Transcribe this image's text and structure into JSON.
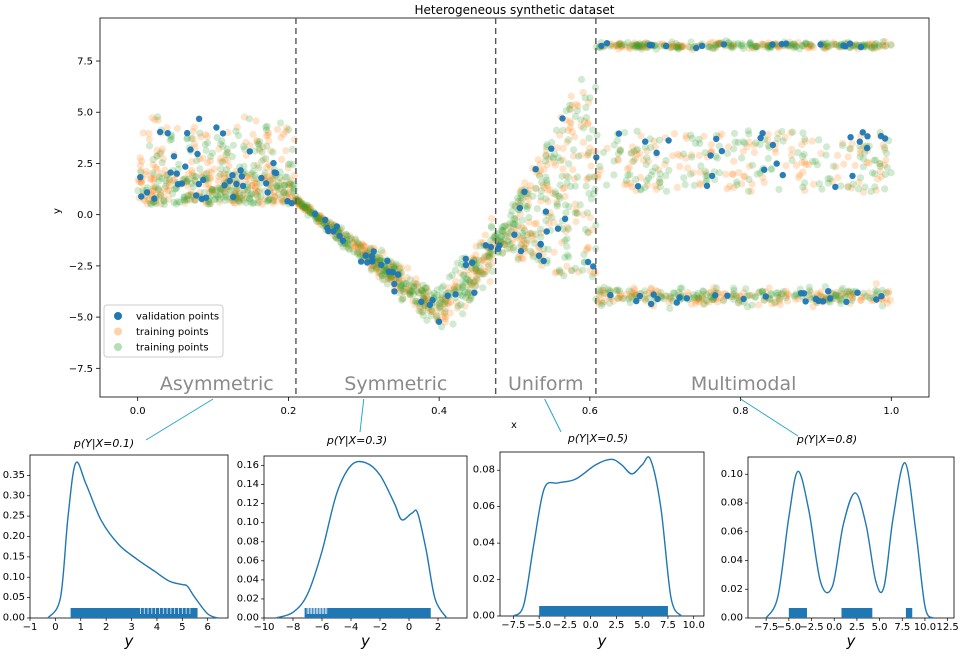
{
  "chart_data": [
    {
      "type": "scatter",
      "title": "Heterogeneous synthetic dataset",
      "xlabel": "x",
      "ylabel": "y",
      "xlim": [
        -0.05,
        1.05
      ],
      "ylim": [
        -8.9,
        9.6
      ],
      "xticks": [
        "0.0",
        "0.2",
        "0.4",
        "0.6",
        "0.8",
        "1.0"
      ],
      "yticks": [
        "−7.5",
        "−5.0",
        "−2.5",
        "0.0",
        "2.5",
        "5.0",
        "7.5"
      ],
      "grid": false,
      "legend_position": "lower-left",
      "legend": [
        "validation points",
        "training points",
        "training points"
      ],
      "colors": {
        "validation": "#1f77b4",
        "training_orange": "#ff7f0e",
        "training_green": "#2ca02c"
      },
      "dividers_x": [
        0.21,
        0.475,
        0.608
      ],
      "regions": [
        {
          "label": "Asymmetric",
          "x_range": [
            0.0,
            0.21
          ]
        },
        {
          "label": "Symmetric",
          "x_range": [
            0.21,
            0.475
          ]
        },
        {
          "label": "Uniform",
          "x_range": [
            0.475,
            0.608
          ]
        },
        {
          "label": "Multimodal",
          "x_range": [
            0.608,
            1.0
          ]
        }
      ],
      "pointers": [
        0.1,
        0.3,
        0.54,
        0.8
      ],
      "series": [
        {
          "name": "validation points",
          "summary": "sparse blue points following the same structure as the training data"
        },
        {
          "name": "training points",
          "summary": "orange semi-transparent points; asymmetric band 0.5–5.5 for x<0.21, descending/ascending V to about −5 near x=0.4, fan from −3.5 to 7 near x=0.6, three bands at about −4, 2.5 and 8.2 for x>0.61"
        },
        {
          "name": "training points",
          "summary": "green semi-transparent points with the same distribution as the orange points"
        }
      ]
    },
    {
      "type": "line",
      "title": "p(Y|X=0.1)",
      "xlabel": "y",
      "xlim": [
        -1,
        6.8
      ],
      "ylim": [
        0,
        0.4
      ],
      "xticks": [
        "−1",
        "0",
        "1",
        "2",
        "3",
        "4",
        "5",
        "6"
      ],
      "yticks": [
        "0.00",
        "0.05",
        "0.10",
        "0.15",
        "0.20",
        "0.25",
        "0.30",
        "0.35"
      ],
      "x": [
        -0.3,
        0.2,
        0.5,
        0.8,
        1.2,
        1.8,
        2.5,
        3.2,
        3.9,
        4.5,
        5.0,
        5.2,
        5.5,
        6.0,
        6.4
      ],
      "y": [
        0.0,
        0.05,
        0.25,
        0.38,
        0.33,
        0.24,
        0.18,
        0.145,
        0.115,
        0.09,
        0.082,
        0.078,
        0.05,
        0.01,
        0.0
      ],
      "rug_range": [
        0.6,
        5.6
      ]
    },
    {
      "type": "line",
      "title": "p(Y|X=0.3)",
      "xlabel": "y",
      "xlim": [
        -10,
        4
      ],
      "ylim": [
        0,
        0.17
      ],
      "xticks": [
        "−10",
        "−8",
        "−6",
        "−4",
        "−2",
        "0",
        "2"
      ],
      "yticks": [
        "0.00",
        "0.02",
        "0.04",
        "0.06",
        "0.08",
        "0.10",
        "0.12",
        "0.14",
        "0.16"
      ],
      "x": [
        -9.2,
        -8.0,
        -7.0,
        -6.0,
        -5.0,
        -4.0,
        -3.0,
        -2.0,
        -1.0,
        -0.5,
        0.2,
        0.6,
        1.2,
        1.8,
        2.6
      ],
      "y": [
        0.0,
        0.006,
        0.025,
        0.07,
        0.13,
        0.16,
        0.163,
        0.15,
        0.12,
        0.103,
        0.11,
        0.11,
        0.07,
        0.02,
        0.0
      ],
      "rug_range": [
        -7.2,
        1.5
      ]
    },
    {
      "type": "line",
      "title": "p(Y|X=0.5)",
      "xlabel": "y",
      "xlim": [
        -8.8,
        11
      ],
      "ylim": [
        0,
        0.09
      ],
      "xticks": [
        "−7.5",
        "−5.0",
        "−2.5",
        "0.0",
        "2.5",
        "5.0",
        "7.5",
        "10.0"
      ],
      "yticks": [
        "0.00",
        "0.02",
        "0.04",
        "0.06",
        "0.08"
      ],
      "x": [
        -7.5,
        -6.5,
        -5.5,
        -4.5,
        -3.2,
        -1.5,
        0.5,
        2.0,
        3.0,
        4.0,
        5.0,
        5.8,
        6.8,
        7.8,
        8.8
      ],
      "y": [
        0.0,
        0.006,
        0.04,
        0.07,
        0.073,
        0.075,
        0.083,
        0.086,
        0.083,
        0.078,
        0.083,
        0.086,
        0.06,
        0.01,
        0.0
      ],
      "rug_range": [
        -5.0,
        7.5
      ]
    },
    {
      "type": "line",
      "title": "p(Y|X=0.8)",
      "xlabel": "y",
      "xlim": [
        -9.5,
        13.2
      ],
      "ylim": [
        0,
        0.112
      ],
      "xticks": [
        "−7.5",
        "−5.0",
        "−2.5",
        "0.0",
        "2.5",
        "5.0",
        "7.5",
        "10.0",
        "12.5"
      ],
      "yticks": [
        "0.00",
        "0.02",
        "0.04",
        "0.06",
        "0.08",
        "0.10"
      ],
      "x": [
        -7.5,
        -6.2,
        -5.0,
        -4.0,
        -2.8,
        -1.5,
        -0.2,
        1.0,
        2.3,
        3.5,
        4.6,
        5.5,
        6.5,
        7.8,
        9.0,
        10.0,
        10.9
      ],
      "y": [
        0.0,
        0.015,
        0.07,
        0.102,
        0.075,
        0.025,
        0.022,
        0.065,
        0.087,
        0.065,
        0.025,
        0.022,
        0.07,
        0.108,
        0.06,
        0.008,
        0.0
      ],
      "rug_ranges": [
        [
          -5.0,
          -3.0
        ],
        [
          0.8,
          4.2
        ],
        [
          7.9,
          8.6
        ]
      ]
    }
  ],
  "conditional_labels": [
    "p(Y|X=0.1)",
    "p(Y|X=0.3)",
    "p(Y|X=0.5)",
    "p(Y|X=0.8)"
  ]
}
